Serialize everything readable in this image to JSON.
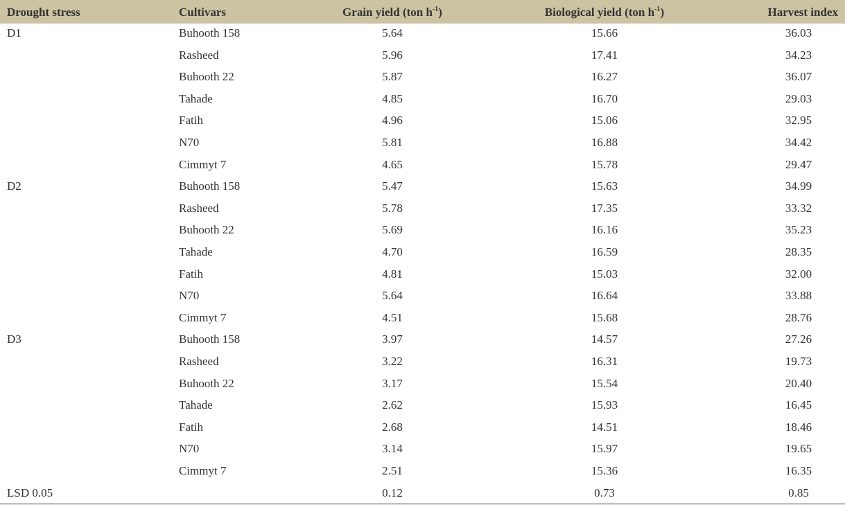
{
  "table": {
    "header": [
      {
        "text": "Drought stress"
      },
      {
        "text": "Cultivars"
      },
      {
        "text": "Grain yield (ton h",
        "sup": "-1",
        "after": ")"
      },
      {
        "text": "Biological yield (ton h",
        "sup": "-1",
        "after": ")"
      },
      {
        "text": "Harvest index"
      }
    ],
    "groups": [
      {
        "stress": "D1",
        "rows": [
          [
            "Buhooth 158",
            "5.64",
            "15.66",
            "36.03"
          ],
          [
            "Rasheed",
            "5.96",
            "17.41",
            "34.23"
          ],
          [
            "Buhooth 22",
            "5.87",
            "16.27",
            "36.07"
          ],
          [
            "Tahade",
            "4.85",
            "16.70",
            "29.03"
          ],
          [
            "Fatih",
            "4.96",
            "15.06",
            "32.95"
          ],
          [
            "N70",
            "5.81",
            "16.88",
            "34.42"
          ],
          [
            "Cimmyt 7",
            "4.65",
            "15.78",
            "29.47"
          ]
        ]
      },
      {
        "stress": "D2",
        "rows": [
          [
            "Buhooth 158",
            "5.47",
            "15.63",
            "34.99"
          ],
          [
            "Rasheed",
            "5.78",
            "17.35",
            "33.32"
          ],
          [
            "Buhooth 22",
            "5.69",
            "16.16",
            "35.23"
          ],
          [
            "Tahade",
            "4.70",
            "16.59",
            "28.35"
          ],
          [
            "Fatih",
            "4.81",
            "15.03",
            "32.00"
          ],
          [
            "N70",
            "5.64",
            "16.64",
            "33.88"
          ],
          [
            "Cimmyt 7",
            "4.51",
            "15.68",
            "28.76"
          ]
        ]
      },
      {
        "stress": "D3",
        "rows": [
          [
            "Buhooth 158",
            "3.97",
            "14.57",
            "27.26"
          ],
          [
            "Rasheed",
            "3.22",
            "16.31",
            "19.73"
          ],
          [
            "Buhooth 22",
            "3.17",
            "15.54",
            "20.40"
          ],
          [
            "Tahade",
            "2.62",
            "15.93",
            "16.45"
          ],
          [
            "Fatih",
            "2.68",
            "14.51",
            "18.46"
          ],
          [
            "N70",
            "3.14",
            "15.97",
            "19.65"
          ],
          [
            "Cimmyt 7",
            "2.51",
            "15.36",
            "16.35"
          ]
        ]
      }
    ],
    "lsd": {
      "label": "LSD 0.05",
      "values": [
        "0.12",
        "0.73",
        "0.85"
      ]
    }
  }
}
